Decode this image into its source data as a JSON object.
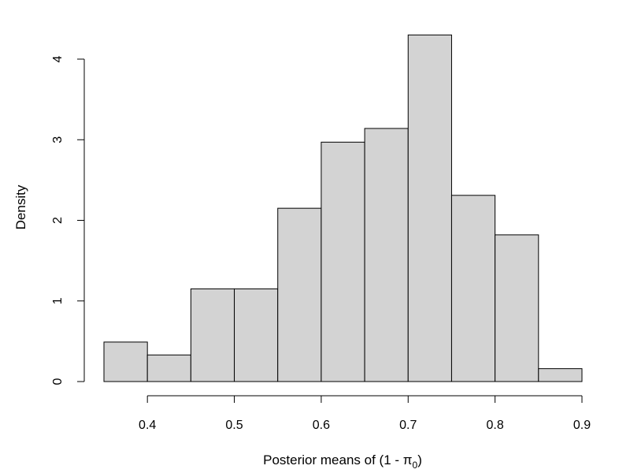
{
  "chart_data": {
    "type": "bar",
    "bin_edges": [
      0.35,
      0.4,
      0.45,
      0.5,
      0.55,
      0.6,
      0.65,
      0.7,
      0.75,
      0.8,
      0.85,
      0.9
    ],
    "values": [
      0.49,
      0.33,
      1.15,
      1.15,
      2.15,
      2.97,
      3.14,
      4.3,
      2.31,
      1.82,
      0.16
    ],
    "title": "",
    "xlabel": "Posterior means of (1 - π",
    "xlabel_subscript": "0",
    "xlabel_suffix": ")",
    "ylabel": "Density",
    "xlim": [
      0.35,
      0.9
    ],
    "ylim": [
      0,
      4.3
    ],
    "x_ticks": [
      0.4,
      0.5,
      0.6,
      0.7,
      0.8,
      0.9
    ],
    "x_tick_labels": [
      "0.4",
      "0.5",
      "0.6",
      "0.7",
      "0.8",
      "0.9"
    ],
    "y_ticks": [
      0,
      1,
      2,
      3,
      4
    ],
    "y_tick_labels": [
      "0",
      "1",
      "2",
      "3",
      "4"
    ],
    "grid": false,
    "legend": "none",
    "bar_fill": "#d3d3d3",
    "bar_stroke": "#000000"
  }
}
